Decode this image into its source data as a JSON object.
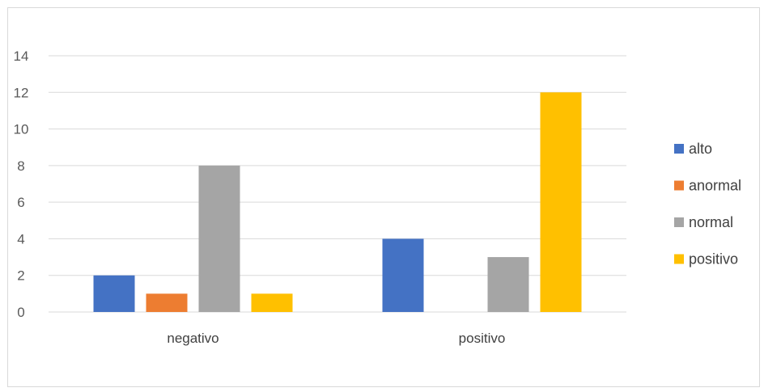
{
  "chart_data": {
    "type": "bar",
    "categories": [
      "negativo",
      "positivo"
    ],
    "series": [
      {
        "name": "alto",
        "values": [
          2,
          4
        ],
        "color": "#4472c4"
      },
      {
        "name": "anormal",
        "values": [
          1,
          0
        ],
        "color": "#ed7d31"
      },
      {
        "name": "normal",
        "values": [
          8,
          3
        ],
        "color": "#a5a5a5"
      },
      {
        "name": "positivo",
        "values": [
          1,
          12
        ],
        "color": "#ffc000"
      }
    ],
    "ylim": [
      0,
      14
    ],
    "yticks": [
      0,
      2,
      4,
      6,
      8,
      10,
      12,
      14
    ],
    "grid": true,
    "legend": "right",
    "gridColor": "#d9d9d9"
  }
}
